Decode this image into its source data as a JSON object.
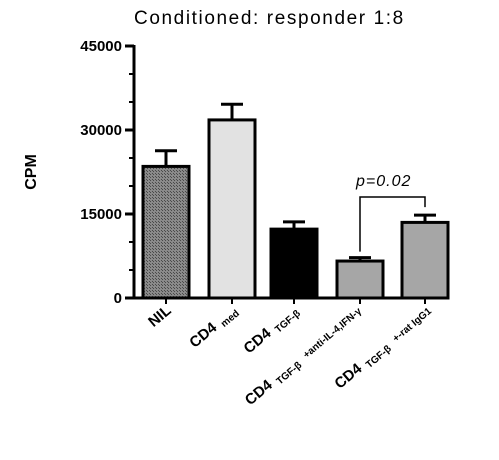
{
  "chart_data": {
    "type": "bar",
    "title": "Conditioned: responder 1:8",
    "ylabel": "CPM",
    "xlabel": "",
    "ylim": [
      0,
      45000
    ],
    "yticks": [
      0,
      15000,
      30000,
      45000
    ],
    "ytick_labels": [
      "0",
      "15000",
      "30000",
      "45000"
    ],
    "grid": false,
    "categories": [
      {
        "main": "NIL",
        "sub": "",
        "extra": ""
      },
      {
        "main": "CD4",
        "sub": "med",
        "extra": ""
      },
      {
        "main": "CD4",
        "sub": "TGF-β",
        "extra": ""
      },
      {
        "main": "CD4",
        "sub": "TGF-β",
        "extra": "+anti-IL-4,IFN-γ"
      },
      {
        "main": "CD4",
        "sub": "TGF-β",
        "extra": "+-rat IgG1"
      }
    ],
    "values": [
      23500,
      31800,
      12300,
      6600,
      13500
    ],
    "errors": [
      2800,
      2800,
      1300,
      600,
      1300
    ],
    "colors": [
      "#7a7a7a",
      "#e2e2e2",
      "#000000",
      "#a6a6a6",
      "#a6a6a6"
    ],
    "annotation": {
      "text": "p=0.02",
      "between": [
        3,
        4
      ]
    }
  }
}
